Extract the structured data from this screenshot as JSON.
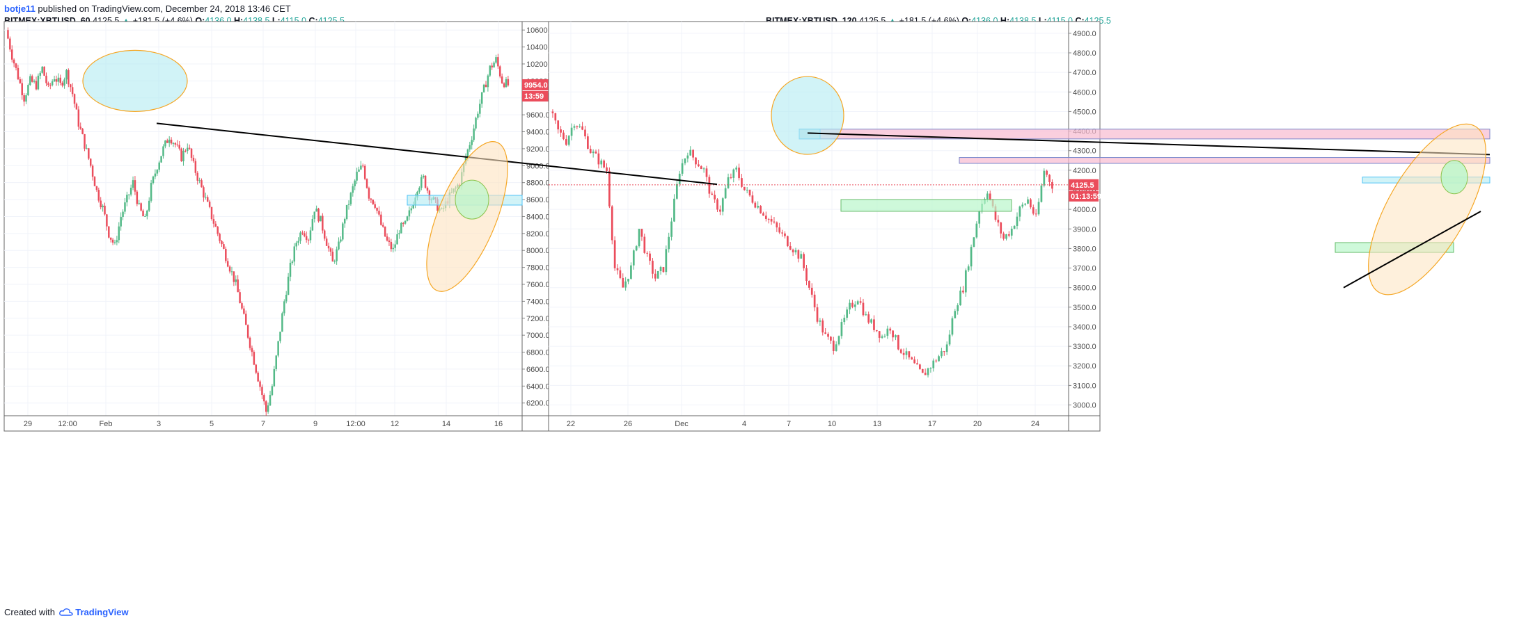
{
  "header": {
    "author": "botje11",
    "published_text": "published on TradingView.com, December 24, 2018 13:46 CET"
  },
  "footer": {
    "created_with": "Created with",
    "brand": "TradingView"
  },
  "colors": {
    "up": "#53b987",
    "down": "#eb4d5c",
    "price_tag": "#eb4d5c",
    "trendline": "#000000",
    "cyan_fill": "#b2ebf2",
    "orange_stroke": "#f5a623",
    "green_fill": "#b9f6ca",
    "red_zone_fill": "#f8bbd0"
  },
  "chart_data": [
    {
      "type": "candlestick",
      "symbol_line": {
        "name": "BITMEX:XBTUSD, 60",
        "last": "4125.5",
        "arrow": "▲",
        "change": "+181.5 (+4.6%)",
        "o_label": "O:",
        "o_value": "4136.0",
        "h_label": "H:",
        "h_value": "4138.5",
        "l_label": "L:",
        "l_value": "4115.0",
        "c_label": "C:",
        "c_value": "4125.5"
      },
      "price_tag": "9954.0",
      "time_tag": "13:59",
      "y_ticks": [
        "6200.0",
        "6400.0",
        "6600.0",
        "6800.0",
        "7000.0",
        "7200.0",
        "7400.0",
        "7600.0",
        "7800.0",
        "8000.0",
        "8200.0",
        "8400.0",
        "8600.0",
        "8800.0",
        "9000.0",
        "9200.0",
        "9400.0",
        "9600.0",
        "9800.0",
        "10000.0",
        "10200.0",
        "10400.0",
        "10600.0"
      ],
      "ylim": [
        6050,
        10700
      ],
      "x_ticks": [
        "29",
        "12:00",
        "Feb",
        "3",
        "5",
        "7",
        "9",
        "12:00",
        "12",
        "14",
        "16"
      ],
      "series_close_path": [
        10600,
        10300,
        10050,
        9800,
        10000,
        9950,
        10150,
        9900,
        10050,
        9950,
        10100,
        9850,
        9500,
        9250,
        9000,
        8700,
        8500,
        8200,
        8050,
        8400,
        8600,
        8800,
        8500,
        8350,
        8750,
        9000,
        9200,
        9350,
        9250,
        9100,
        9250,
        9000,
        8800,
        8600,
        8400,
        8200,
        8000,
        7800,
        7600,
        7300,
        7000,
        6700,
        6400,
        6100,
        6400,
        6900,
        7400,
        7800,
        8100,
        8250,
        8150,
        8500,
        8350,
        8100,
        7850,
        8050,
        8400,
        8650,
        8900,
        9000,
        8650,
        8550,
        8300,
        8100,
        8000,
        8250,
        8300,
        8500,
        8750,
        8850,
        8650,
        8550,
        8450,
        8600,
        8700,
        8800,
        9100,
        9350,
        9650,
        9900,
        10150,
        10250,
        10000,
        9950
      ]
    },
    {
      "type": "candlestick",
      "symbol_line": {
        "name": "BITMEX:XBTUSD, 120",
        "last": "4125.5",
        "arrow": "▲",
        "change": "+181.5 (+4.6%)",
        "o_label": "O:",
        "o_value": "4136.0",
        "h_label": "H:",
        "h_value": "4138.5",
        "l_label": "L:",
        "l_value": "4115.0",
        "c_label": "C:",
        "c_value": "4125.5"
      },
      "price_tag": "4125.5",
      "time_tag": "01:13:59",
      "y_ticks": [
        "3000.0",
        "3100.0",
        "3200.0",
        "3300.0",
        "3400.0",
        "3500.0",
        "3600.0",
        "3700.0",
        "3800.0",
        "3900.0",
        "4000.0",
        "4100.0",
        "4200.0",
        "4300.0",
        "4400.0",
        "4500.0",
        "4600.0",
        "4700.0",
        "4800.0",
        "4900.0"
      ],
      "ylim": [
        2945,
        4960
      ],
      "x_ticks": [
        "22",
        "26",
        "Dec",
        "4",
        "7",
        "10",
        "13",
        "17",
        "20",
        "24"
      ],
      "series_close_path": [
        4500,
        4400,
        4350,
        4450,
        4400,
        4300,
        4250,
        4200,
        3700,
        3600,
        3700,
        3900,
        3750,
        3650,
        3700,
        3950,
        4200,
        4300,
        4250,
        4200,
        4050,
        4000,
        4150,
        4200,
        4100,
        4050,
        4000,
        3950,
        3900,
        3850,
        3800,
        3750,
        3600,
        3450,
        3350,
        3300,
        3400,
        3500,
        3550,
        3450,
        3400,
        3350,
        3400,
        3300,
        3250,
        3200,
        3150,
        3200,
        3250,
        3300,
        3500,
        3600,
        3800,
        4000,
        4100,
        3950,
        3850,
        3900,
        4000,
        4050,
        3950,
        4200,
        4125
      ]
    }
  ]
}
